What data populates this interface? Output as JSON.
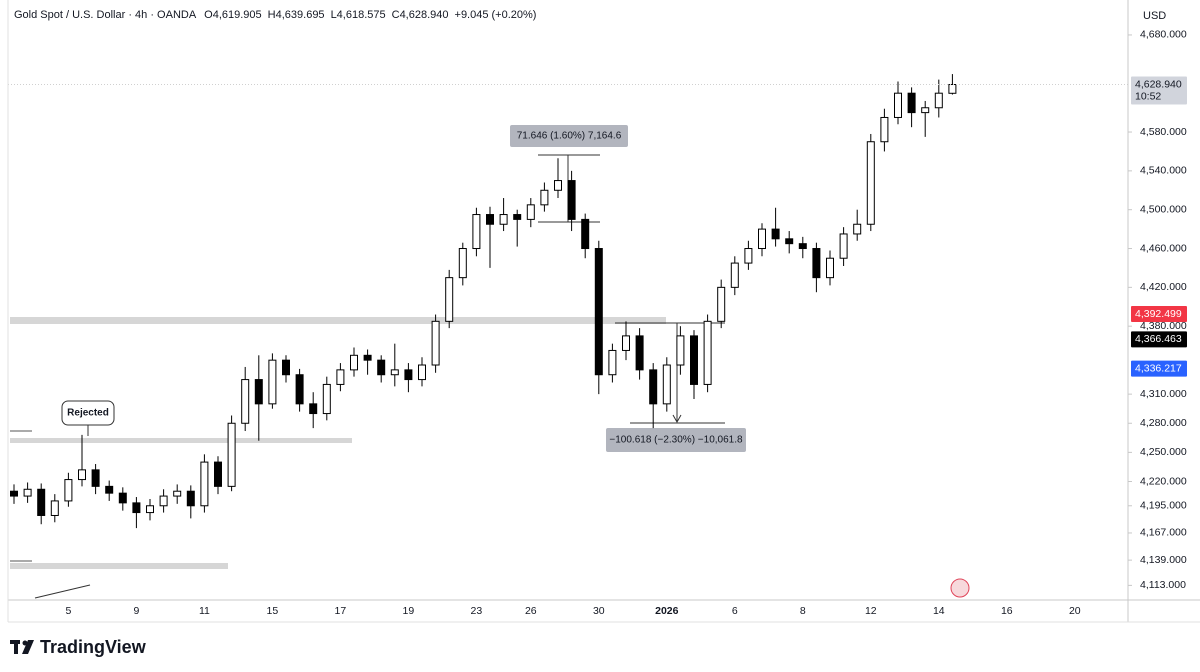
{
  "chart_data": {
    "type": "candlestick",
    "title": "Gold Spot / U.S. Dollar · 4h · OANDA",
    "header_values": [
      "O4,619.905",
      "H4,639.695",
      "L4,618.575",
      "C4,628.940",
      "+9.045 (+0.20%)"
    ],
    "currency": "USD",
    "brand": "TradingView",
    "annotations": [
      "Rejected",
      "71.646 (1.60%) 7,164.6",
      "−100.618 (−2.30%) −10,061.8"
    ],
    "categories": [
      null,
      null,
      null,
      null,
      "5",
      null,
      null,
      null,
      null,
      "9",
      null,
      null,
      null,
      null,
      "11",
      null,
      null,
      null,
      null,
      "15",
      null,
      null,
      null,
      null,
      "17",
      null,
      null,
      null,
      null,
      "19",
      null,
      null,
      null,
      null,
      "23",
      null,
      null,
      null,
      "26",
      null,
      null,
      null,
      null,
      "30",
      null,
      null,
      null,
      null,
      "2026",
      null,
      null,
      null,
      null,
      "6",
      null,
      null,
      null,
      null,
      "8",
      null,
      null,
      null,
      null,
      "12",
      null,
      null,
      null,
      null,
      "14",
      null,
      null,
      null,
      null,
      "16",
      null,
      null,
      null,
      null,
      "20",
      null,
      null,
      null
    ],
    "open": [
      4210,
      4205,
      4212,
      4185,
      4200,
      4222,
      4232,
      4215,
      4208,
      4198,
      4188,
      4195,
      4205,
      4210,
      4195,
      4240,
      4215,
      4280,
      4325,
      4300,
      4345,
      4330,
      4300,
      4290,
      4320,
      4335,
      4350,
      4345,
      4330,
      4335,
      4325,
      4340,
      4385,
      4430,
      4460,
      4495,
      4485,
      4495,
      4490,
      4505,
      4520,
      4530,
      4490,
      4460,
      4330,
      4355,
      4370,
      4335,
      4300,
      4340,
      4370,
      4320,
      4385,
      4420,
      4445,
      4460,
      4480,
      4470,
      4465,
      4460,
      4430,
      4450,
      4475,
      4485,
      4570,
      4595,
      4620,
      4600,
      4605,
      4619.905,
      null,
      null,
      null,
      null,
      null,
      null,
      null,
      null,
      null,
      null,
      null,
      null
    ],
    "high": [
      4217,
      4219,
      4218,
      4207,
      4229,
      4268,
      4238,
      4221,
      4214,
      4204,
      4202,
      4212,
      4217,
      4216,
      4248,
      4246,
      4288,
      4338,
      4350,
      4352,
      4350,
      4336,
      4312,
      4328,
      4342,
      4358,
      4356,
      4350,
      4362,
      4342,
      4348,
      4392,
      4438,
      4466,
      4502,
      4503,
      4512,
      4500,
      4512,
      4528,
      4553,
      4540,
      4496,
      4468,
      4362,
      4385,
      4378,
      4342,
      4348,
      4380,
      4376,
      4392,
      4428,
      4452,
      4468,
      4486,
      4502,
      4478,
      4472,
      4466,
      4458,
      4482,
      4500,
      4578,
      4604,
      4632,
      4626,
      4612,
      4634,
      4639.695,
      null,
      null,
      null,
      null,
      null,
      null,
      null,
      null,
      null,
      null,
      null,
      null
    ],
    "low": [
      4197,
      4198,
      4176,
      4178,
      4194,
      4215,
      4207,
      4200,
      4190,
      4172,
      4180,
      4188,
      4197,
      4182,
      4188,
      4207,
      4210,
      4272,
      4262,
      4295,
      4322,
      4292,
      4275,
      4283,
      4313,
      4328,
      4330,
      4322,
      4318,
      4312,
      4318,
      4332,
      4378,
      4422,
      4452,
      4440,
      4478,
      4462,
      4482,
      4498,
      4512,
      4478,
      4450,
      4310,
      4322,
      4345,
      4325,
      4275,
      4292,
      4330,
      4305,
      4312,
      4378,
      4412,
      4438,
      4452,
      4462,
      4455,
      4450,
      4415,
      4422,
      4442,
      4468,
      4478,
      4560,
      4588,
      4585,
      4575,
      4595,
      4618.575,
      null,
      null,
      null,
      null,
      null,
      null,
      null,
      null,
      null,
      null,
      null,
      null
    ],
    "close": [
      4205,
      4212,
      4185,
      4200,
      4222,
      4232,
      4215,
      4208,
      4198,
      4188,
      4195,
      4205,
      4210,
      4195,
      4240,
      4215,
      4280,
      4325,
      4300,
      4345,
      4330,
      4300,
      4290,
      4320,
      4335,
      4350,
      4345,
      4330,
      4335,
      4325,
      4340,
      4385,
      4430,
      4460,
      4495,
      4485,
      4495,
      4490,
      4505,
      4520,
      4530,
      4490,
      4460,
      4330,
      4355,
      4370,
      4335,
      4300,
      4340,
      4370,
      4320,
      4385,
      4420,
      4445,
      4460,
      4480,
      4470,
      4465,
      4460,
      4430,
      4450,
      4475,
      4485,
      4570,
      4595,
      4620,
      4600,
      4605,
      4620,
      4628.94,
      null,
      null,
      null,
      null,
      null,
      null,
      null,
      null,
      null,
      null,
      null,
      null
    ],
    "up_color": "#ffffff",
    "down_color": "#000000",
    "wick_color": "#000000",
    "ylim": [
      4100,
      4716
    ],
    "yticks": [
      {
        "value": 4680,
        "label": "4,680.000"
      },
      {
        "value": 4580,
        "label": "4,580.000"
      },
      {
        "value": 4540,
        "label": "4,540.000"
      },
      {
        "value": 4500,
        "label": "4,500.000"
      },
      {
        "value": 4460,
        "label": "4,460.000"
      },
      {
        "value": 4420,
        "label": "4,420.000"
      },
      {
        "value": 4380,
        "label": "4,380.000"
      },
      {
        "value": 4310,
        "label": "4,310.000"
      },
      {
        "value": 4280,
        "label": "4,280.000"
      },
      {
        "value": 4250,
        "label": "4,250.000"
      },
      {
        "value": 4220,
        "label": "4,220.000"
      },
      {
        "value": 4195,
        "label": "4,195.000"
      },
      {
        "value": 4167,
        "label": "4,167.000"
      },
      {
        "value": 4139,
        "label": "4,139.000"
      },
      {
        "value": 4113,
        "label": "4,113.000"
      }
    ],
    "price_labels": [
      {
        "value": 4628.94,
        "label": "4,628.940",
        "sub": "10:52",
        "color": "#d1d4dc",
        "text_color": "#131722"
      },
      {
        "value": 4392.499,
        "label": "4,392.499",
        "color": "#f23645",
        "text_color": "#ffffff"
      },
      {
        "value": 4366.463,
        "label": "4,366.463",
        "color": "#000000",
        "text_color": "#ffffff"
      },
      {
        "value": 4336.217,
        "label": "4,336.217",
        "color": "#2962ff",
        "text_color": "#ffffff"
      }
    ],
    "grid": false
  }
}
